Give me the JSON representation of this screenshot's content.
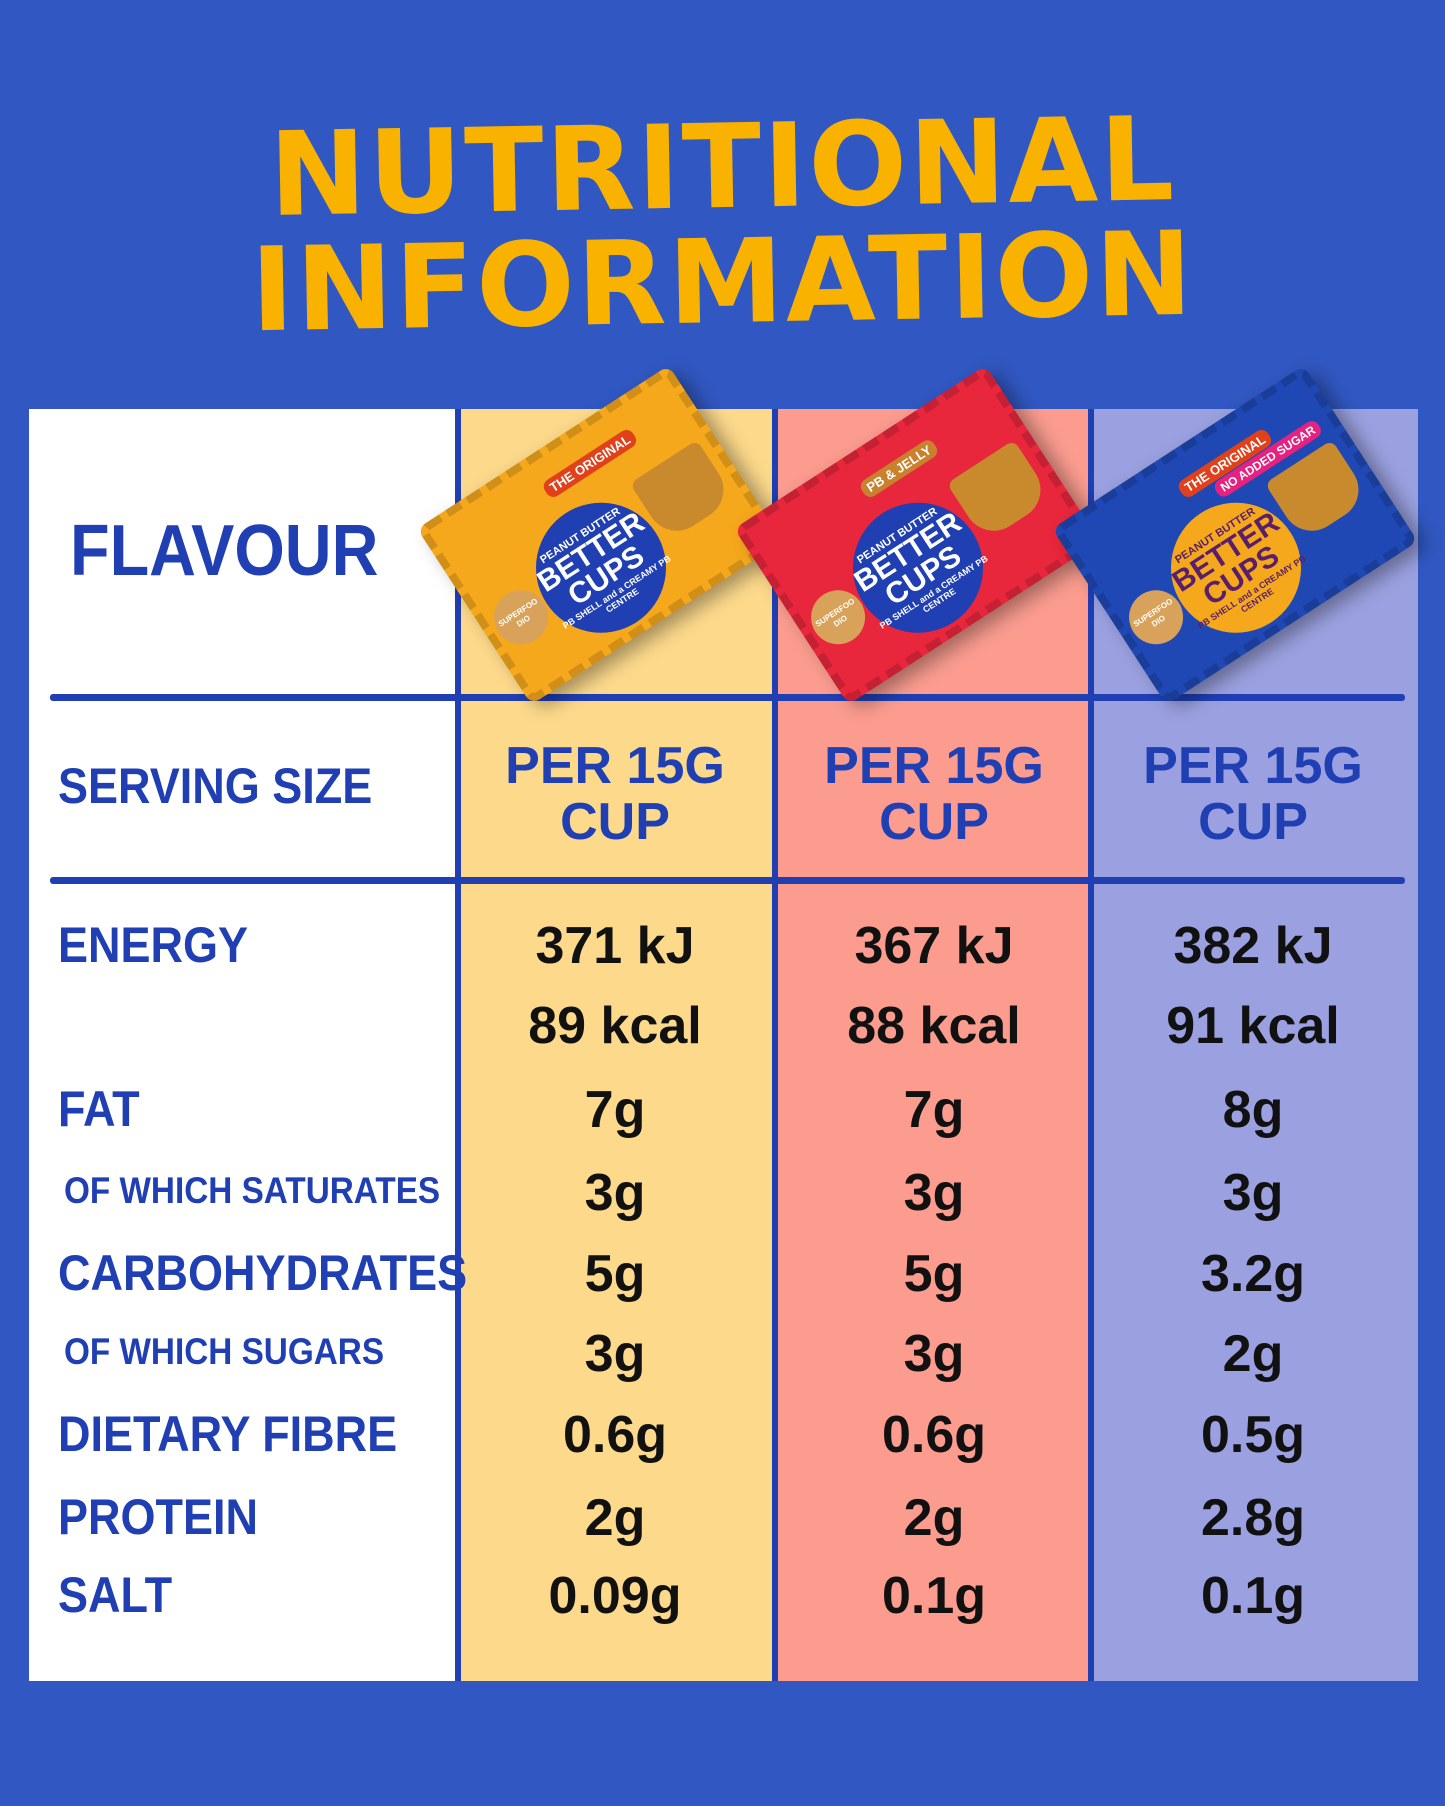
{
  "title": {
    "line1": "NUTRITIONAL",
    "line2": "INFORMATION"
  },
  "colors": {
    "background": "#3158c2",
    "title": "#f9b200",
    "label": "#1f3fb3",
    "original": "#fcd98b",
    "pb_jelly": "#fb9c8f",
    "no_added_sugar": "#9ba1e0"
  },
  "labels": {
    "flavour": "FLAVOUR",
    "serving_size": "SERVING SIZE",
    "energy": "ENERGY",
    "fat": "FAT",
    "saturates": "OF WHICH SATURATES",
    "carbohydrates": "CARBOHYDRATES",
    "sugars": "OF WHICH SUGARS",
    "fibre": "DIETARY FIBRE",
    "protein": "PROTEIN",
    "salt": "SALT"
  },
  "products": [
    {
      "brand": "SUPERFOODIO",
      "line": "PEANUT BUTTER",
      "name": "BETTER CUPS",
      "sub": "PB SHELL and a CREAMY PB CENTRE",
      "tag": "THE ORIGINAL",
      "tag2": "",
      "serving_line1": "PER 15G",
      "serving_line2": "CUP",
      "energy_kj": "371 kJ",
      "energy_kcal": "89 kcal",
      "fat": "7g",
      "saturates": "3g",
      "carbohydrates": "5g",
      "sugars": "3g",
      "fibre": "0.6g",
      "protein": "2g",
      "salt": "0.09g"
    },
    {
      "brand": "SUPERFOODIO",
      "line": "PEANUT BUTTER",
      "name": "BETTER CUPS",
      "sub": "PB SHELL and a CREAMY PB CENTRE",
      "tag": "PB & JELLY",
      "tag2": "",
      "serving_line1": "PER 15G",
      "serving_line2": "CUP",
      "energy_kj": "367 kJ",
      "energy_kcal": "88 kcal",
      "fat": "7g",
      "saturates": "3g",
      "carbohydrates": "5g",
      "sugars": "3g",
      "fibre": "0.6g",
      "protein": "2g",
      "salt": "0.1g"
    },
    {
      "brand": "SUPERFOODIO",
      "line": "PEANUT BUTTER",
      "name": "BETTER CUPS",
      "sub": "PB SHELL and a CREAMY PB CENTRE",
      "tag": "THE ORIGINAL",
      "tag2": "NO ADDED SUGAR",
      "serving_line1": "PER 15G",
      "serving_line2": "CUP",
      "energy_kj": "382 kJ",
      "energy_kcal": "91 kcal",
      "fat": "8g",
      "saturates": "3g",
      "carbohydrates": "3.2g",
      "sugars": "2g",
      "fibre": "0.5g",
      "protein": "2.8g",
      "salt": "0.1g"
    }
  ]
}
